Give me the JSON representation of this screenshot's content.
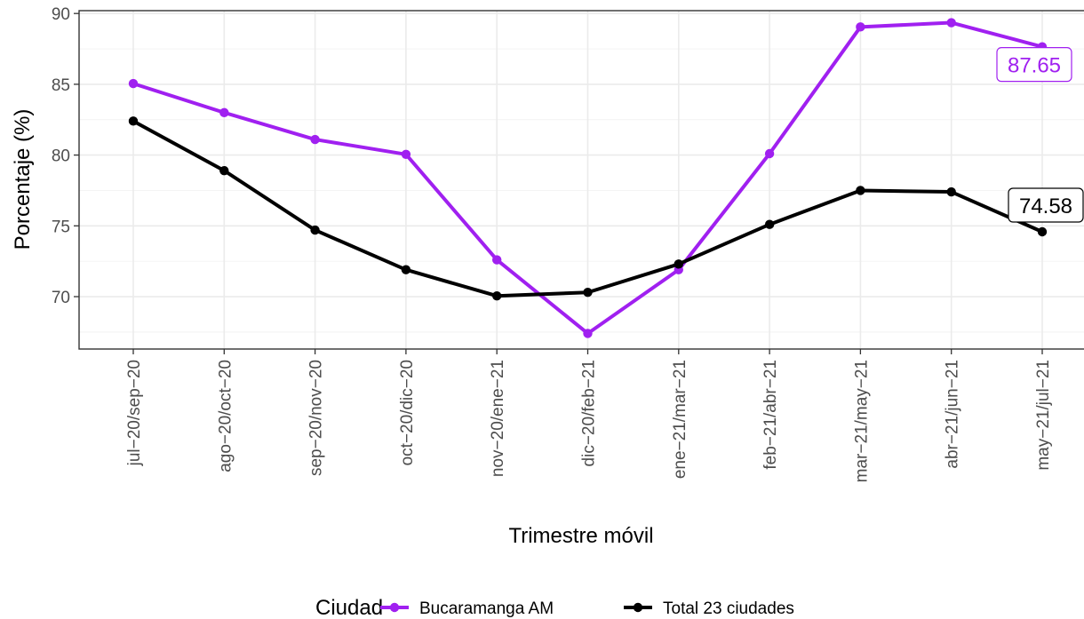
{
  "chart_data": {
    "type": "line",
    "xlabel": "Trimestre móvil",
    "ylabel": "Porcentaje (%)",
    "categories": [
      "jul−20/sep−20",
      "ago−20/oct−20",
      "sep−20/nov−20",
      "oct−20/dic−20",
      "nov−20/ene−21",
      "dic−20/feb−21",
      "ene−21/mar−21",
      "feb−21/abr−21",
      "mar−21/may−21",
      "abr−21/jun−21",
      "may−21/jul−21"
    ],
    "ylim": [
      66.3,
      90.2
    ],
    "yticks": [
      70,
      75,
      80,
      85,
      90
    ],
    "grid": true,
    "legend": {
      "title": "Ciudad",
      "position": "bottom"
    },
    "series": [
      {
        "name": "Bucaramanga AM",
        "color": "#a020f0",
        "values": [
          85.05,
          83.0,
          81.1,
          80.05,
          72.6,
          67.4,
          71.9,
          80.1,
          89.05,
          89.35,
          87.65
        ],
        "end_label": "87.65"
      },
      {
        "name": "Total 23 ciudades",
        "color": "#000000",
        "values": [
          82.4,
          78.9,
          74.7,
          71.9,
          70.05,
          70.3,
          72.3,
          75.1,
          77.5,
          77.4,
          74.58
        ],
        "end_label": "74.58"
      }
    ]
  }
}
